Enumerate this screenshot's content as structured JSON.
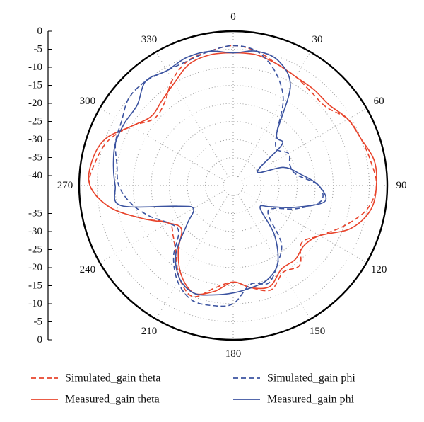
{
  "chart_data": {
    "type": "line",
    "subtype": "polar",
    "angle_ticks": [
      "0",
      "30",
      "60",
      "90",
      "120",
      "150",
      "180",
      "210",
      "240",
      "270",
      "300",
      "330"
    ],
    "radial_axis": {
      "ticks_upper": [
        "0",
        "-5",
        "-10",
        "-15",
        "-20",
        "-25",
        "-30",
        "-35",
        "-40"
      ],
      "ticks_lower": [
        "-35",
        "-30",
        "-25",
        "-20",
        "-15",
        "-10",
        "-5",
        "0"
      ],
      "range": [
        -40,
        0
      ]
    },
    "grid": true,
    "legend_position": "bottom",
    "series": [
      {
        "name": "Simulated_gain theta",
        "color": "#e8442c",
        "style": "dashed",
        "angles": [
          0,
          10,
          20,
          30,
          40,
          50,
          60,
          70,
          80,
          90,
          100,
          110,
          120,
          130,
          140,
          150,
          160,
          170,
          180,
          190,
          200,
          210,
          220,
          230,
          240,
          250,
          260,
          270,
          280,
          290,
          300,
          310,
          320,
          330,
          340,
          350
        ],
        "values": [
          -4,
          -5,
          -7,
          -8,
          -9,
          -9,
          -6,
          -5,
          -4,
          -3,
          -5,
          -10,
          -15,
          -18,
          -14,
          -15,
          -12,
          -14,
          -16,
          -14,
          -10,
          -13,
          -18,
          -21,
          -22,
          -16,
          -8,
          -3,
          -4,
          -6,
          -10,
          -14,
          -13,
          -9,
          -6,
          -5
        ]
      },
      {
        "name": "Measured_gain theta",
        "color": "#e8442c",
        "style": "solid",
        "angles": [
          0,
          10,
          20,
          30,
          40,
          50,
          60,
          70,
          80,
          90,
          100,
          110,
          120,
          130,
          140,
          150,
          160,
          170,
          180,
          190,
          200,
          210,
          220,
          230,
          240,
          250,
          260,
          270,
          280,
          290,
          300,
          310,
          320,
          330,
          340,
          350
        ],
        "values": [
          -6,
          -6,
          -7,
          -8,
          -8,
          -8,
          -6,
          -5,
          -3,
          -3,
          -4,
          -8,
          -15,
          -17,
          -16,
          -16,
          -13,
          -14,
          -16,
          -13,
          -11,
          -14,
          -19,
          -24,
          -22,
          -16,
          -8,
          -3,
          -3,
          -5,
          -10,
          -13,
          -12,
          -10,
          -7,
          -6
        ]
      },
      {
        "name": "Simulated_gain phi",
        "color": "#3b53a0",
        "style": "dashed",
        "angles": [
          0,
          10,
          20,
          30,
          40,
          50,
          60,
          70,
          80,
          90,
          100,
          110,
          120,
          130,
          140,
          150,
          160,
          170,
          180,
          190,
          200,
          210,
          220,
          230,
          240,
          250,
          260,
          270,
          280,
          290,
          300,
          310,
          320,
          330,
          340,
          350
        ],
        "values": [
          -4,
          -5,
          -9,
          -15,
          -24,
          -27,
          -25,
          -26,
          -25,
          -19,
          -18,
          -24,
          -30,
          -30,
          -22,
          -18,
          -14,
          -15,
          -10,
          -9,
          -9,
          -12,
          -17,
          -23,
          -22,
          -18,
          -14,
          -11,
          -10,
          -8,
          -7,
          -5,
          -5,
          -6,
          -6,
          -5
        ]
      },
      {
        "name": "Measured_gain phi",
        "color": "#3b53a0",
        "style": "solid",
        "angles": [
          0,
          10,
          20,
          30,
          40,
          50,
          60,
          70,
          80,
          90,
          100,
          110,
          120,
          130,
          140,
          150,
          160,
          170,
          180,
          190,
          200,
          210,
          220,
          230,
          240,
          250,
          260,
          270,
          280,
          290,
          300,
          310,
          320,
          330,
          340,
          350
        ],
        "values": [
          -6,
          -5,
          -6,
          -11,
          -24,
          -25,
          -35,
          -28,
          -24,
          -19,
          -17,
          -25,
          -31,
          -33,
          -25,
          -18,
          -15,
          -14,
          -13,
          -12,
          -11,
          -13,
          -18,
          -26,
          -30,
          -26,
          -11,
          -10,
          -9,
          -8,
          -8,
          -8,
          -5,
          -6,
          -5,
          -5
        ]
      }
    ]
  }
}
